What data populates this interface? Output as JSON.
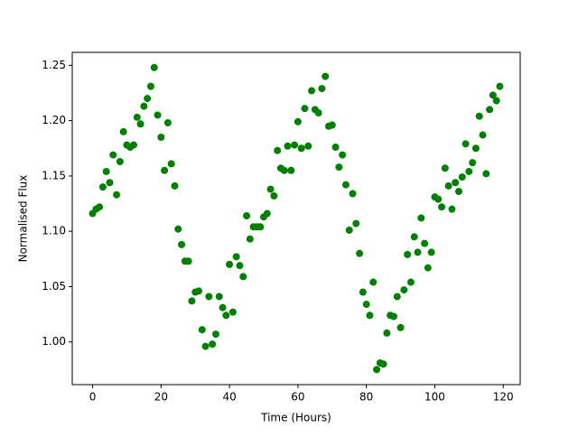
{
  "chart_data": {
    "type": "scatter",
    "x_label": "Time (Hours)",
    "y_label": "Normalised Flux",
    "xlim": [
      -5.95,
      124.95
    ],
    "xticks": [
      0,
      20,
      40,
      60,
      80,
      100,
      120
    ],
    "ylim": [
      0.9614,
      1.2617
    ],
    "yticks": [
      {
        "value": 1,
        "label": "1.00"
      },
      1.05,
      {
        "value": 1.1,
        "label": "1.10"
      },
      1.15,
      {
        "value": 1.2,
        "label": "1.20"
      },
      1.25
    ],
    "series": [
      {
        "color": "#008000",
        "x": [
          0,
          1,
          2,
          3,
          4,
          5,
          6,
          7,
          8,
          9,
          10,
          11,
          12,
          13,
          14,
          15,
          16,
          17,
          18,
          19,
          20,
          21,
          22,
          23,
          24,
          25,
          26,
          27,
          28,
          29,
          30,
          31,
          32,
          33,
          34,
          35,
          36,
          37,
          38,
          39,
          40,
          41,
          42,
          43,
          44,
          45,
          46,
          47,
          48,
          49,
          50,
          51,
          52,
          53,
          54,
          55,
          56,
          57,
          58,
          59,
          60,
          61,
          62,
          63,
          64,
          65,
          66,
          67,
          68,
          69,
          70,
          71,
          72,
          73,
          74,
          75,
          76,
          77,
          78,
          79,
          80,
          81,
          82,
          83,
          84,
          85,
          86,
          87,
          88,
          89,
          90,
          91,
          92,
          93,
          94,
          95,
          96,
          97,
          98,
          99,
          100,
          101,
          102,
          103,
          104,
          105,
          106,
          107,
          108,
          109,
          110,
          111,
          112,
          113,
          114,
          115,
          116,
          117,
          118,
          119
        ],
        "values": [
          1.116,
          1.12,
          1.122,
          1.14,
          1.154,
          1.144,
          1.169,
          1.133,
          1.163,
          1.19,
          1.178,
          1.176,
          1.178,
          1.203,
          1.197,
          1.213,
          1.22,
          1.231,
          1.248,
          1.205,
          1.185,
          1.155,
          1.198,
          1.161,
          1.141,
          1.102,
          1.088,
          1.073,
          1.073,
          1.037,
          1.045,
          1.046,
          1.011,
          0.996,
          1.041,
          0.998,
          1.007,
          1.041,
          1.031,
          1.024,
          1.07,
          1.027,
          1.077,
          1.069,
          1.059,
          1.114,
          1.093,
          1.104,
          1.104,
          1.104,
          1.113,
          1.116,
          1.138,
          1.132,
          1.173,
          1.157,
          1.155,
          1.177,
          1.155,
          1.178,
          1.199,
          1.175,
          1.211,
          1.177,
          1.227,
          1.21,
          1.207,
          1.229,
          1.24,
          1.195,
          1.196,
          1.176,
          1.158,
          1.169,
          1.142,
          1.101,
          1.134,
          1.107,
          1.08,
          1.045,
          1.034,
          1.024,
          1.054,
          0.975,
          0.981,
          0.98,
          1.008,
          1.024,
          1.023,
          1.041,
          1.013,
          1.047,
          1.079,
          1.054,
          1.095,
          1.081,
          1.112,
          1.089,
          1.067,
          1.081,
          1.131,
          1.129,
          1.122,
          1.157,
          1.141,
          1.12,
          1.144,
          1.136,
          1.149,
          1.179,
          1.154,
          1.162,
          1.175,
          1.204,
          1.187,
          1.152,
          1.21,
          1.223,
          1.218,
          1.231
        ]
      }
    ]
  }
}
